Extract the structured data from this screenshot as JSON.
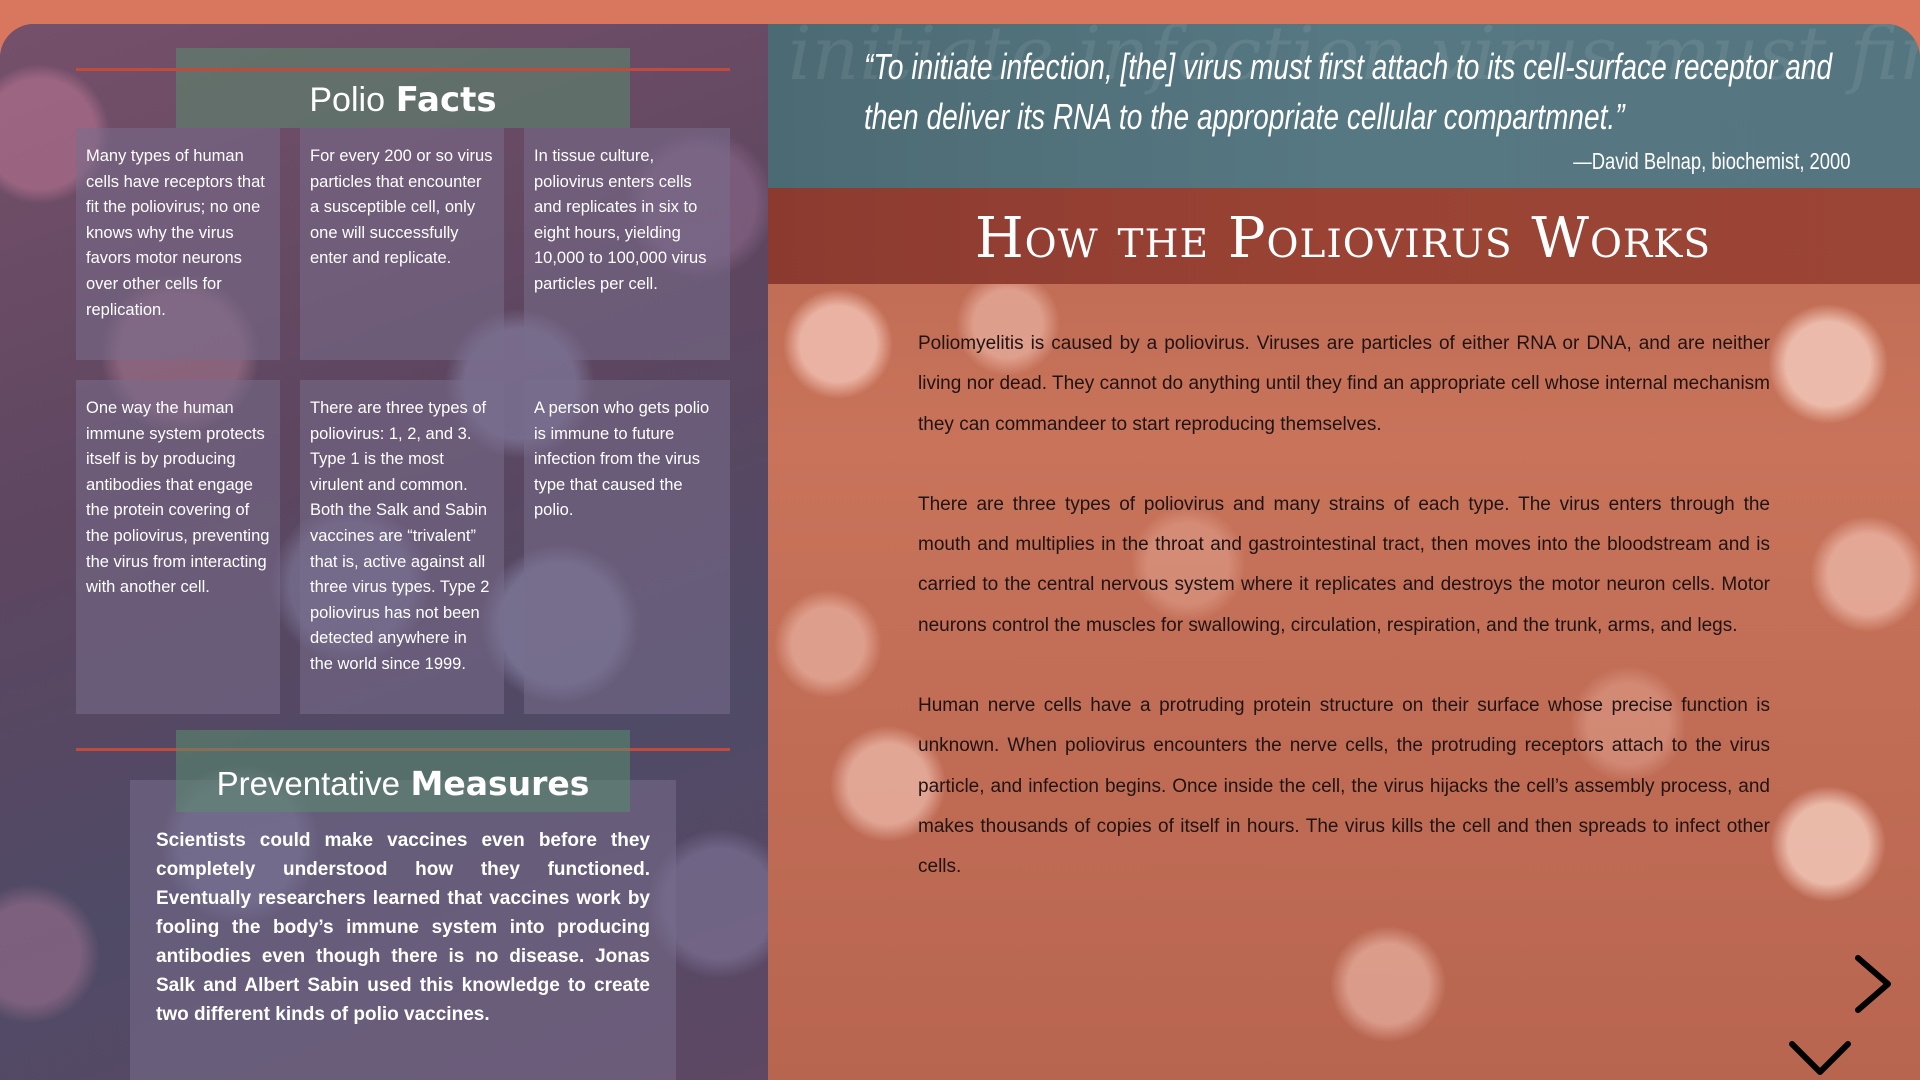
{
  "facts": {
    "title_light": "Polio",
    "title_bold": "Facts",
    "items": [
      "Many types of human cells have receptors that fit the poliovirus; no one knows why the virus favors motor neurons over other cells for replication.",
      "For every 200 or so virus particles that encounter a susceptible cell, only one will successfully enter and replicate.",
      "In tissue culture, poliovirus enters cells and replicates in six to eight hours, yielding 10,000 to 100,000 virus particles per cell.",
      "One way the human immune system protects itself is by producing antibodies that engage the protein covering of the poliovirus, preventing the virus from interacting with another cell.",
      "There are three types of poliovirus: 1, 2, and 3. Type 1 is the most virulent and common. Both the Salk and Sabin vaccines are “trivalent” that is, active against all three virus types. Type 2 poliovirus has not been detected anywhere in the world since 1999.",
      "A person who gets polio is immune to future infection from the virus type that caused the polio."
    ]
  },
  "measures": {
    "title_light": "Preventative",
    "title_bold": "Measures",
    "text": "Scientists could make vaccines even before they completely understood how they functioned. Eventually researchers learned that vaccines work by fooling the body’s immune system into producing antibodies even though there is no disease. Jonas Salk and Albert Sabin used this knowledge to create two different kinds of polio vaccines."
  },
  "quote": {
    "text": "“To initiate infection, [the] virus must first attach to its cell-surface receptor and then deliver its RNA to the appropriate cellular compartmnet.”",
    "attribution": "—David Belnap, biochemist, 2000",
    "background_text": "initiate infection virus must first cellular compartment receptor"
  },
  "main": {
    "title": "How the Poliovirus Works",
    "paragraphs": [
      "Poliomyelitis is caused by a poliovirus. Viruses are particles of either RNA or DNA, and are neither living nor dead. They cannot do anything until they find an appropriate cell whose internal mechanism they can commandeer to start reproducing themselves.",
      "There are three types of poliovirus and many strains of each type. The virus enters through the mouth and multiplies in the throat and gastrointestinal tract, then moves into the bloodstream and is carried to the central nervous system where it replicates and destroys the motor neuron cells. Motor neurons control the muscles for swallowing, circulation, respiration, and the trunk, arms, and legs.",
      "Human nerve cells have a protruding protein structure on their surface whose precise function is unknown. When poliovirus encounters the nerve cells, the protruding receptors attach to the virus particle, and infection begins. Once inside the cell, the virus hijacks the cell’s assembly process, and makes thousands of copies of itself in hours. The virus kills the cell and then spreads to infect other cells."
    ]
  },
  "nav": {
    "next_icon": "chevron-right-icon",
    "down_icon": "chevron-down-icon"
  },
  "colors": {
    "top_bar": "#d9775e",
    "rule": "#c24a3a",
    "heading_bg": "#5a8c6e",
    "quote_band": "#567882",
    "title_band": "#9a4334"
  }
}
